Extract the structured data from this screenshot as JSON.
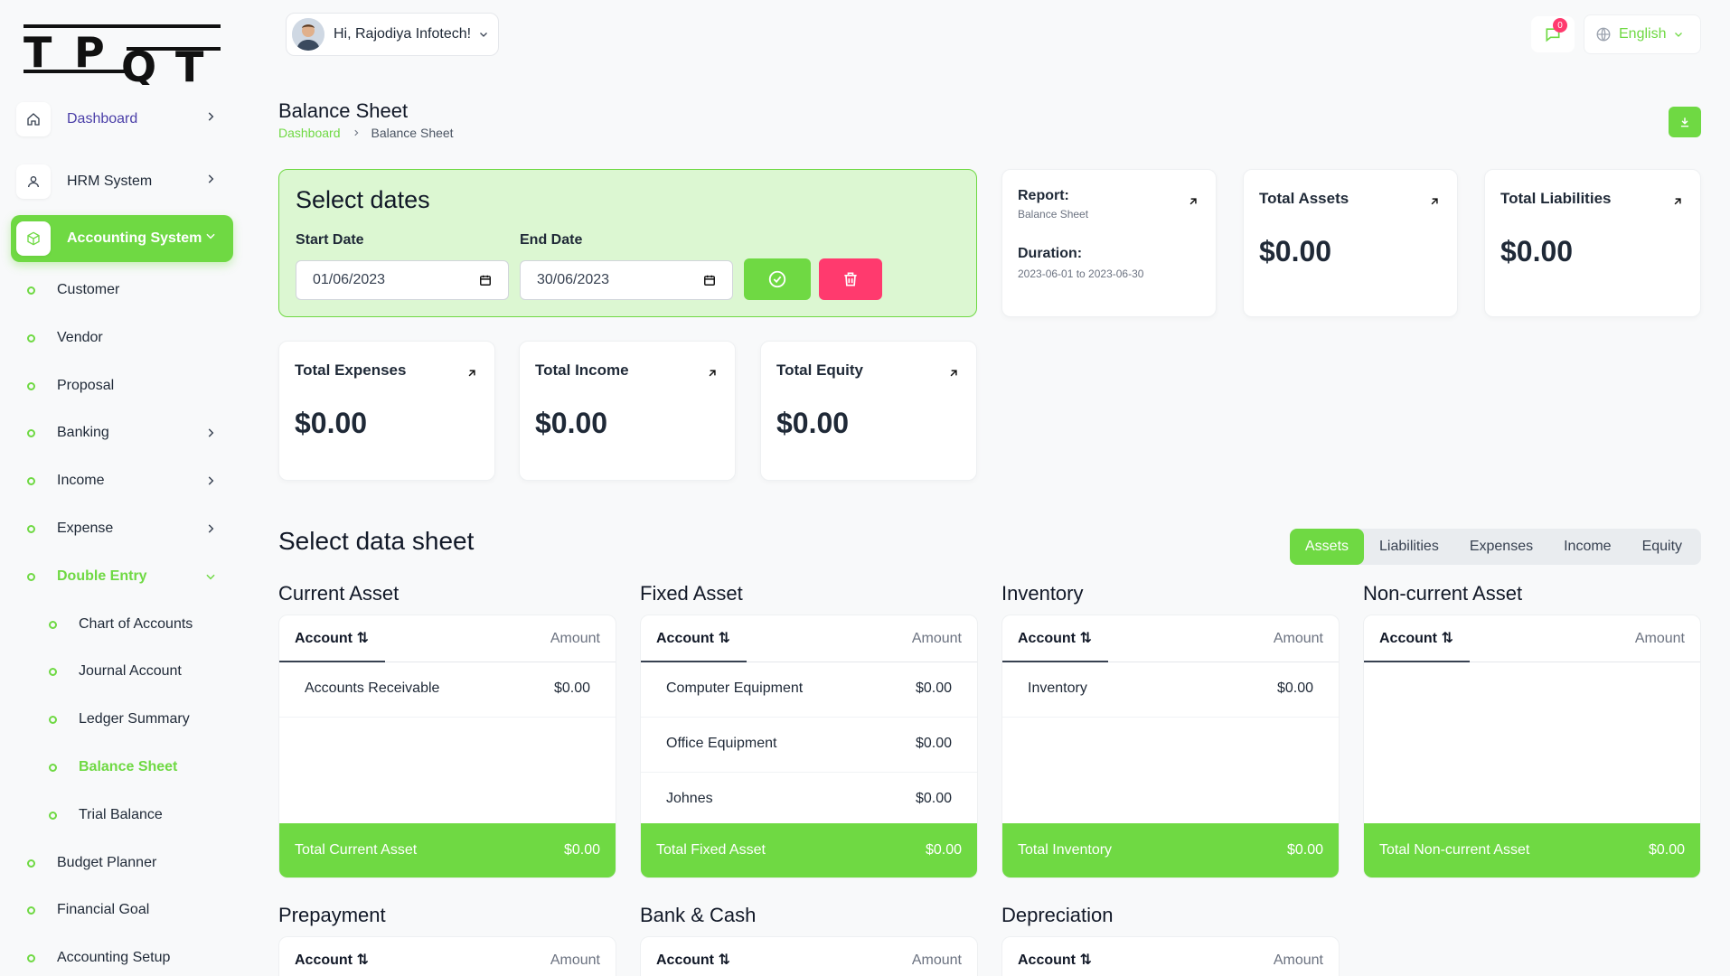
{
  "brand": {
    "logo_text": "TPQT",
    "accent": "#6fd943",
    "danger": "#ff3a6e"
  },
  "sidebar": {
    "main": [
      {
        "label": "Dashboard",
        "icon": "home-icon"
      },
      {
        "label": "HRM System",
        "icon": "user-icon"
      },
      {
        "label": "Accounting System",
        "icon": "box-icon"
      }
    ],
    "accounting": [
      "Customer",
      "Vendor",
      "Proposal",
      "Banking",
      "Income",
      "Expense",
      "Double Entry",
      "Budget Planner",
      "Financial Goal",
      "Accounting Setup"
    ],
    "double_entry": [
      "Chart of Accounts",
      "Journal Account",
      "Ledger Summary",
      "Balance Sheet",
      "Trial Balance"
    ]
  },
  "topbar": {
    "greeting": "Hi, Rajodiya Infotech!",
    "notif_count": "0",
    "language": "English"
  },
  "page": {
    "title": "Balance Sheet",
    "breadcrumb_home": "Dashboard",
    "breadcrumb_current": "Balance Sheet"
  },
  "filter": {
    "title": "Select dates",
    "start_label": "Start Date",
    "start_value": "01/06/2023",
    "end_label": "End Date",
    "end_value": "30/06/2023"
  },
  "report": {
    "report_label": "Report:",
    "report_value": "Balance Sheet",
    "duration_label": "Duration:",
    "duration_value": "2023-06-01 to 2023-06-30"
  },
  "stats": [
    {
      "title": "Total Assets",
      "value": "$0.00"
    },
    {
      "title": "Total Liabilities",
      "value": "$0.00"
    },
    {
      "title": "Total Expenses",
      "value": "$0.00"
    },
    {
      "title": "Total Income",
      "value": "$0.00"
    },
    {
      "title": "Total Equity",
      "value": "$0.00"
    }
  ],
  "datasheet": {
    "title": "Select data sheet",
    "tabs": [
      "Assets",
      "Liabilities",
      "Expenses",
      "Income",
      "Equity"
    ],
    "col_account": "Account ⇅",
    "col_amount": "Amount",
    "groups": [
      {
        "title": "Current Asset",
        "rows": [
          {
            "name": "Accounts Receivable",
            "amount": "$0.00"
          }
        ],
        "total_label": "Total Current Asset",
        "total": "$0.00"
      },
      {
        "title": "Fixed Asset",
        "rows": [
          {
            "name": "Computer Equipment",
            "amount": "$0.00"
          },
          {
            "name": "Office Equipment",
            "amount": "$0.00"
          },
          {
            "name": "Johnes",
            "amount": "$0.00"
          }
        ],
        "total_label": "Total Fixed Asset",
        "total": "$0.00"
      },
      {
        "title": "Inventory",
        "rows": [
          {
            "name": "Inventory",
            "amount": "$0.00"
          }
        ],
        "total_label": "Total Inventory",
        "total": "$0.00"
      },
      {
        "title": "Non-current Asset",
        "rows": [],
        "total_label": "Total Non-current Asset",
        "total": "$0.00"
      },
      {
        "title": "Prepayment"
      },
      {
        "title": "Bank & Cash"
      },
      {
        "title": "Depreciation"
      }
    ]
  }
}
